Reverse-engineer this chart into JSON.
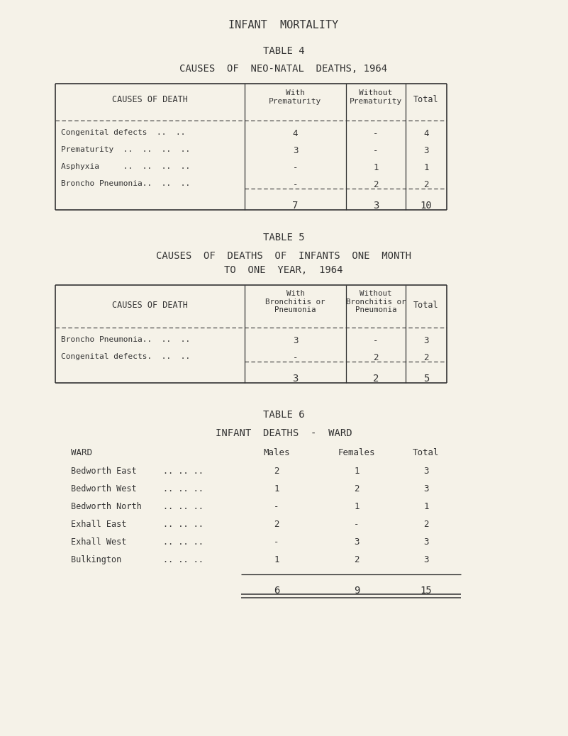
{
  "bg_color": "#f5f2e8",
  "text_color": "#333333",
  "title_main": "INFANT  MORTALITY",
  "table4_title": "TABLE 4",
  "table4_subtitle": "CAUSES  OF  NEO-NATAL  DEATHS, 1964",
  "table4_rows": [
    [
      "Congenital defects  ..  ..",
      "4",
      "-",
      "4"
    ],
    [
      "Prematurity  ..  ..  ..  ..",
      "3",
      "-",
      "3"
    ],
    [
      "Asphyxia     ..  ..  ..  ..",
      "-",
      "1",
      "1"
    ],
    [
      "Broncho Pneumonia..  ..  ..",
      "-",
      "2",
      "2"
    ]
  ],
  "table4_totals": [
    "",
    "7",
    "3",
    "10"
  ],
  "table5_title": "TABLE 5",
  "table5_subtitle1": "CAUSES  OF  DEATHS  OF  INFANTS  ONE  MONTH",
  "table5_subtitle2": "TO  ONE  YEAR,  1964",
  "table5_rows": [
    [
      "Broncho Pneumonia..  ..  ..",
      "3",
      "-",
      "3"
    ],
    [
      "Congenital defects.  ..  ..",
      "-",
      "2",
      "2"
    ]
  ],
  "table5_totals": [
    "",
    "3",
    "2",
    "5"
  ],
  "table6_title": "TABLE 6",
  "table6_subtitle": "INFANT  DEATHS  -  WARD",
  "table6_rows": [
    [
      "Bedworth East",
      ".. .. ..",
      "2",
      "1",
      "3"
    ],
    [
      "Bedworth West",
      ".. .. ..",
      "1",
      "2",
      "3"
    ],
    [
      "Bedworth North",
      ".. .. ..",
      "-",
      "1",
      "1"
    ],
    [
      "Exhall East",
      ".. .. ..",
      "2",
      "-",
      "2"
    ],
    [
      "Exhall West",
      ".. .. ..",
      "-",
      "3",
      "3"
    ],
    [
      "Bulkington",
      ".. .. ..",
      "1",
      "2",
      "3"
    ]
  ],
  "table6_totals": [
    "6",
    "9",
    "15"
  ]
}
